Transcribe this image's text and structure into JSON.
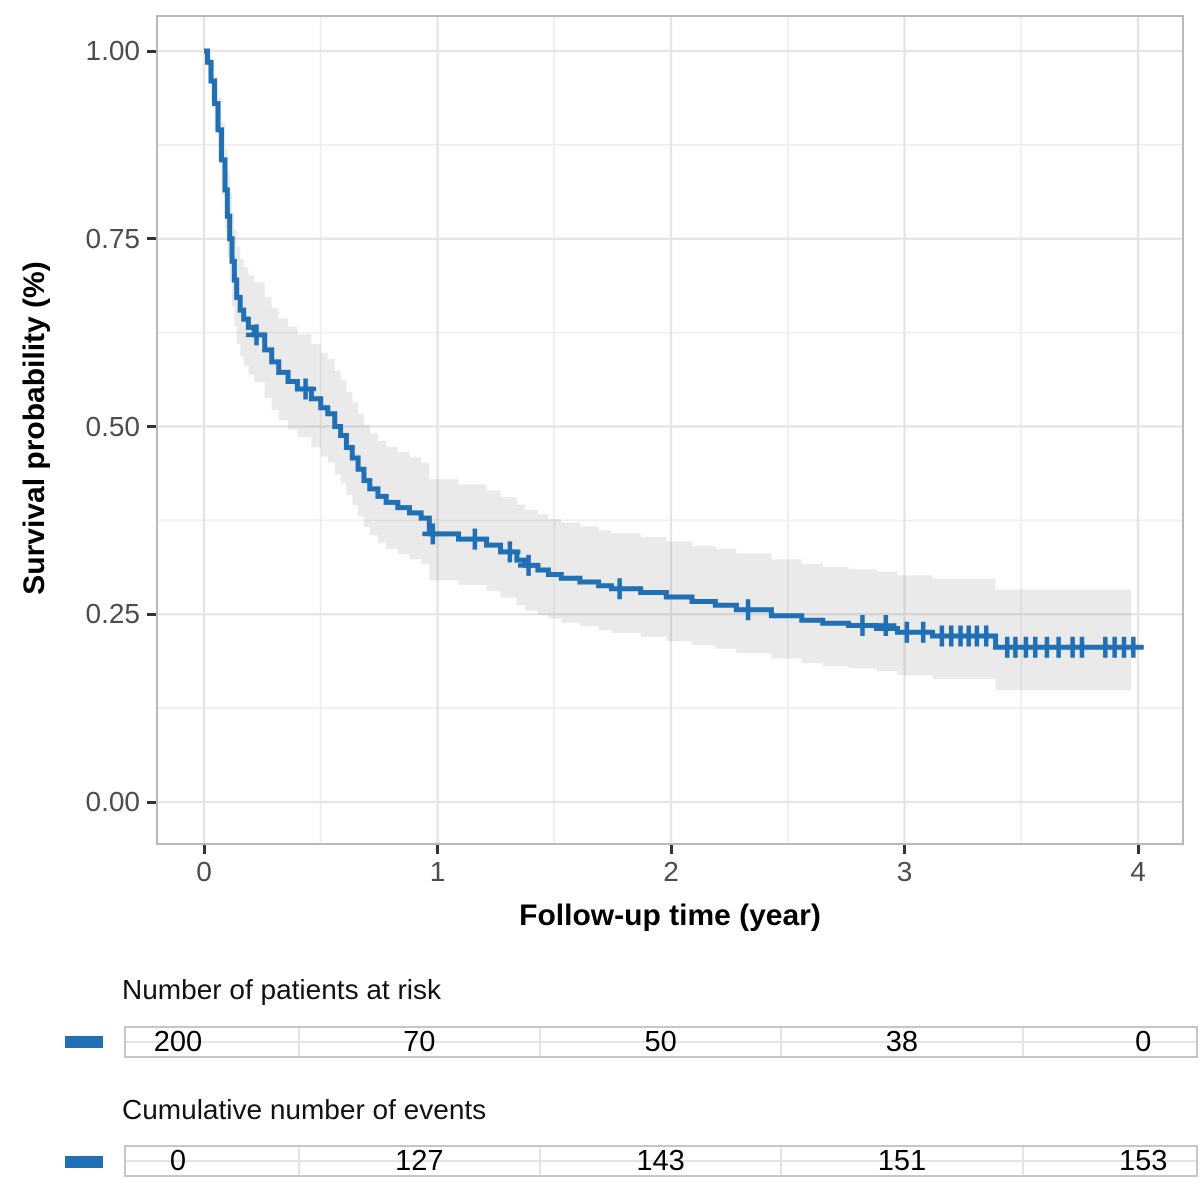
{
  "colors": {
    "curve_blue": "#2170b5",
    "ci_band": "rgba(125,125,125,0.16)",
    "grid_major": "#e4e4e4",
    "grid_minor": "#efefef",
    "panel_border": "#b9b9b9",
    "tick_mark": "#333333",
    "tick_label": "#4d4d4d",
    "axis_title": "#000000"
  },
  "chart_data": {
    "type": "line",
    "variant": "kaplan_meier_step_with_ci",
    "title": "",
    "xlabel": "Follow-up time (year)",
    "ylabel": "Survival probability (%)",
    "x_tick_values": [
      0,
      1,
      2,
      3,
      4
    ],
    "x_tick_labels": [
      "0",
      "1",
      "2",
      "3",
      "4"
    ],
    "x_minor_ticks": [
      0.5,
      1.5,
      2.5,
      3.5
    ],
    "y_tick_values": [
      1.0,
      0.75,
      0.5,
      0.25,
      0.0
    ],
    "y_tick_labels": [
      "1.00",
      "0.75",
      "0.50",
      "0.25",
      "0.00"
    ],
    "y_minor_ticks": [
      0.875,
      0.625,
      0.375,
      0.125
    ],
    "xlim": [
      -0.21,
      4.2
    ],
    "ylim": [
      -0.057,
      1.048
    ],
    "grid": "major+minor",
    "legend_position": "none",
    "series": [
      {
        "name": "survival",
        "color": "#2170b5",
        "line_end_time": 4.02,
        "band_end_time": 3.97,
        "steps": [
          [
            0.0,
            1.0,
            1.0,
            1.0
          ],
          [
            0.015,
            0.985,
            0.968,
            1.0
          ],
          [
            0.03,
            0.96,
            0.933,
            0.988
          ],
          [
            0.045,
            0.93,
            0.895,
            0.966
          ],
          [
            0.06,
            0.895,
            0.853,
            0.938
          ],
          [
            0.075,
            0.855,
            0.808,
            0.905
          ],
          [
            0.09,
            0.815,
            0.763,
            0.87
          ],
          [
            0.1,
            0.78,
            0.725,
            0.839
          ],
          [
            0.11,
            0.75,
            0.692,
            0.812
          ],
          [
            0.12,
            0.72,
            0.66,
            0.784
          ],
          [
            0.13,
            0.695,
            0.634,
            0.761
          ],
          [
            0.14,
            0.672,
            0.61,
            0.739
          ],
          [
            0.155,
            0.655,
            0.593,
            0.723
          ],
          [
            0.17,
            0.643,
            0.58,
            0.712
          ],
          [
            0.19,
            0.632,
            0.569,
            0.701
          ],
          [
            0.215,
            0.622,
            0.559,
            0.692
          ],
          [
            0.26,
            0.602,
            0.538,
            0.673
          ],
          [
            0.29,
            0.586,
            0.522,
            0.658
          ],
          [
            0.32,
            0.572,
            0.508,
            0.644
          ],
          [
            0.36,
            0.56,
            0.496,
            0.633
          ],
          [
            0.4,
            0.55,
            0.486,
            0.623
          ],
          [
            0.46,
            0.537,
            0.472,
            0.61
          ],
          [
            0.5,
            0.525,
            0.46,
            0.598
          ],
          [
            0.53,
            0.517,
            0.452,
            0.59
          ],
          [
            0.56,
            0.5,
            0.436,
            0.574
          ],
          [
            0.585,
            0.488,
            0.424,
            0.562
          ],
          [
            0.61,
            0.472,
            0.409,
            0.546
          ],
          [
            0.635,
            0.458,
            0.395,
            0.532
          ],
          [
            0.66,
            0.443,
            0.38,
            0.517
          ],
          [
            0.685,
            0.428,
            0.366,
            0.502
          ],
          [
            0.71,
            0.417,
            0.355,
            0.491
          ],
          [
            0.745,
            0.407,
            0.345,
            0.481
          ],
          [
            0.78,
            0.399,
            0.337,
            0.473
          ],
          [
            0.83,
            0.392,
            0.33,
            0.466
          ],
          [
            0.88,
            0.385,
            0.323,
            0.459
          ],
          [
            0.93,
            0.378,
            0.317,
            0.452
          ],
          [
            0.965,
            0.357,
            0.295,
            0.43
          ],
          [
            1.09,
            0.35,
            0.289,
            0.423
          ],
          [
            1.21,
            0.342,
            0.281,
            0.415
          ],
          [
            1.27,
            0.333,
            0.272,
            0.406
          ],
          [
            1.34,
            0.322,
            0.262,
            0.396
          ],
          [
            1.375,
            0.315,
            0.255,
            0.389
          ],
          [
            1.43,
            0.309,
            0.249,
            0.383
          ],
          [
            1.475,
            0.303,
            0.244,
            0.377
          ],
          [
            1.53,
            0.298,
            0.239,
            0.372
          ],
          [
            1.61,
            0.293,
            0.234,
            0.367
          ],
          [
            1.69,
            0.288,
            0.229,
            0.362
          ],
          [
            1.745,
            0.284,
            0.225,
            0.358
          ],
          [
            1.87,
            0.279,
            0.22,
            0.353
          ],
          [
            1.98,
            0.273,
            0.214,
            0.347
          ],
          [
            2.09,
            0.267,
            0.209,
            0.341
          ],
          [
            2.19,
            0.262,
            0.204,
            0.337
          ],
          [
            2.28,
            0.256,
            0.198,
            0.331
          ],
          [
            2.43,
            0.248,
            0.191,
            0.323
          ],
          [
            2.56,
            0.242,
            0.185,
            0.317
          ],
          [
            2.65,
            0.238,
            0.181,
            0.313
          ],
          [
            2.76,
            0.235,
            0.178,
            0.31
          ],
          [
            2.88,
            0.231,
            0.174,
            0.307
          ],
          [
            2.97,
            0.226,
            0.169,
            0.302
          ],
          [
            3.12,
            0.221,
            0.164,
            0.297
          ],
          [
            3.39,
            0.206,
            0.149,
            0.283
          ],
          [
            3.97,
            0.206,
            0.149,
            0.283
          ]
        ],
        "censor_marks": [
          [
            0.225,
            0.622
          ],
          [
            0.435,
            0.55
          ],
          [
            0.98,
            0.357
          ],
          [
            1.16,
            0.35
          ],
          [
            1.31,
            0.333
          ],
          [
            1.39,
            0.315
          ],
          [
            1.78,
            0.284
          ],
          [
            2.33,
            0.256
          ],
          [
            2.82,
            0.235
          ],
          [
            2.92,
            0.235
          ],
          [
            3.01,
            0.226
          ],
          [
            3.08,
            0.226
          ],
          [
            3.16,
            0.221
          ],
          [
            3.2,
            0.221
          ],
          [
            3.24,
            0.221
          ],
          [
            3.275,
            0.221
          ],
          [
            3.31,
            0.221
          ],
          [
            3.35,
            0.221
          ],
          [
            3.44,
            0.206
          ],
          [
            3.475,
            0.206
          ],
          [
            3.52,
            0.206
          ],
          [
            3.56,
            0.206
          ],
          [
            3.61,
            0.206
          ],
          [
            3.66,
            0.206
          ],
          [
            3.72,
            0.206
          ],
          [
            3.76,
            0.206
          ],
          [
            3.86,
            0.206
          ],
          [
            3.9,
            0.206
          ],
          [
            3.94,
            0.206
          ],
          [
            3.98,
            0.206
          ]
        ]
      }
    ],
    "risk_table": {
      "title": "Number of patients at risk",
      "times": [
        0,
        1,
        2,
        3,
        4
      ],
      "values": [
        "200",
        "70",
        "50",
        "38",
        "0"
      ]
    },
    "events_table": {
      "title": "Cumulative number of events",
      "times": [
        0,
        1,
        2,
        3,
        4
      ],
      "values": [
        "0",
        "127",
        "143",
        "151",
        "153"
      ]
    }
  }
}
